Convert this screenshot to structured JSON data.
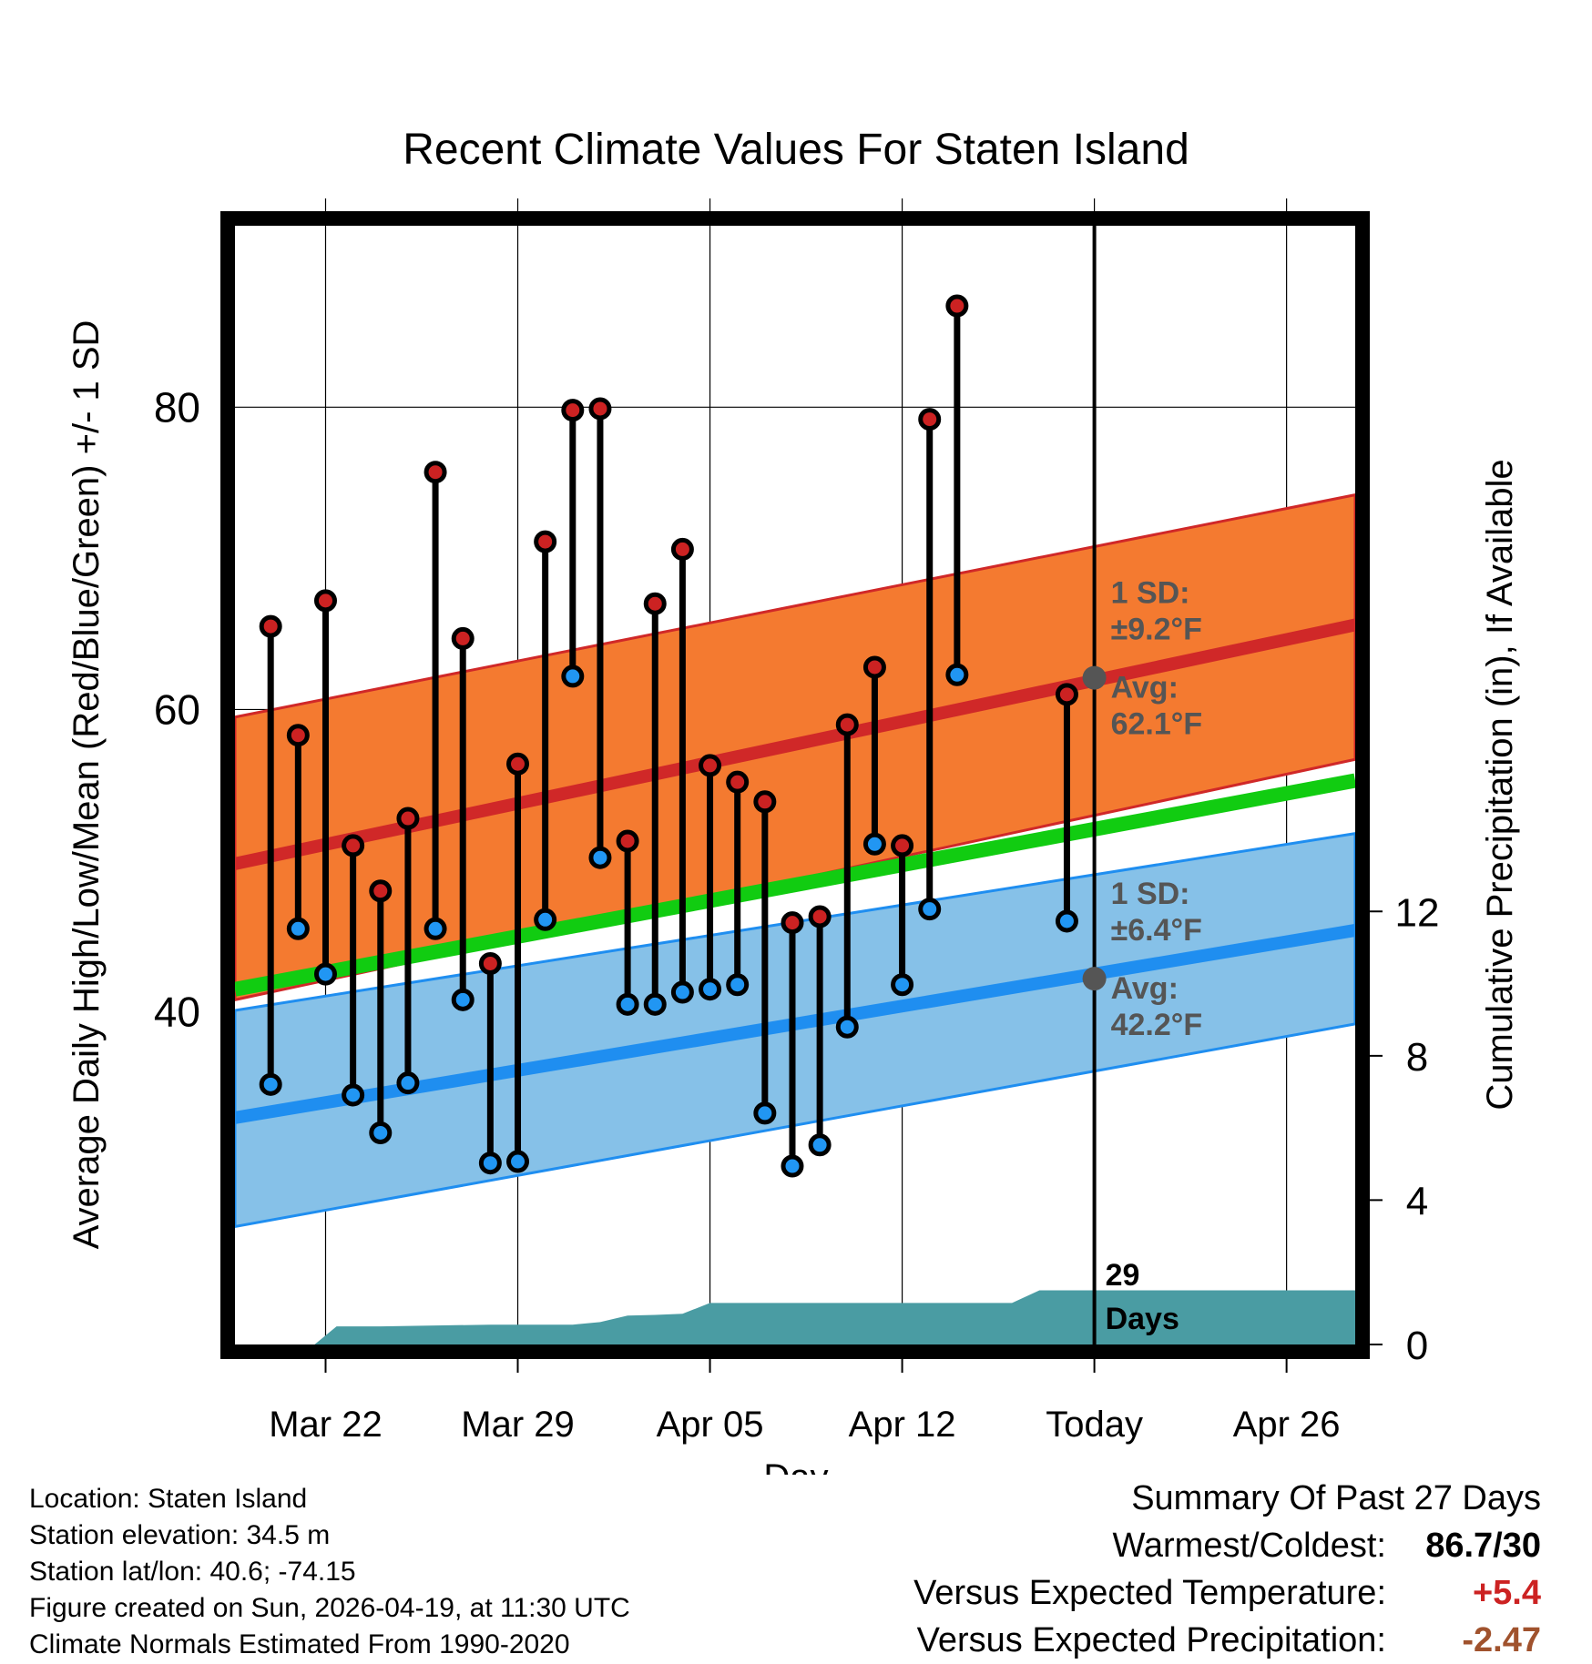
{
  "chart_data": {
    "type": "range-bar",
    "title": "Recent Climate Values For Staten Island",
    "xlabel": "Day",
    "ylabel": "Average Daily High/Low/Mean (Red/Blue/Green) +/- 1 SD",
    "y2label": "Cumulative Precipitation (in), If Available",
    "x_ticks": [
      "Mar 22",
      "Mar 29",
      "Apr 05",
      "Apr 12",
      "Today",
      "Apr 26"
    ],
    "x_tick_days": [
      0,
      7,
      14,
      21,
      28,
      35
    ],
    "xlim": [
      -3.3,
      37.5
    ],
    "ylim": [
      18,
      92
    ],
    "y_ticks": [
      40,
      60,
      80
    ],
    "y_minor_ticks": [
      30,
      50,
      70,
      90
    ],
    "y2lim": [
      0,
      31
    ],
    "y2_ticks": [
      0,
      4,
      8,
      12
    ],
    "today_day": 28,
    "daily": {
      "days": [
        -2,
        -1,
        0,
        1,
        2,
        3,
        4,
        5,
        6,
        7,
        8,
        9,
        10,
        11,
        12,
        13,
        14,
        15,
        16,
        17,
        18,
        19,
        20,
        21,
        22,
        23,
        27
      ],
      "highs": [
        65.5,
        58.3,
        67.2,
        51.0,
        48.0,
        52.8,
        75.7,
        64.7,
        43.2,
        56.4,
        71.1,
        79.8,
        79.9,
        51.3,
        67.0,
        70.6,
        56.3,
        55.2,
        53.9,
        45.9,
        46.3,
        59.0,
        62.8,
        51.0,
        79.2,
        86.7,
        61.0
      ],
      "lows": [
        35.2,
        45.5,
        42.5,
        34.5,
        32.0,
        35.3,
        45.5,
        40.8,
        30.0,
        30.1,
        46.1,
        62.2,
        50.2,
        40.5,
        40.5,
        41.3,
        41.5,
        41.8,
        33.3,
        29.8,
        31.2,
        39.0,
        51.1,
        41.8,
        46.8,
        62.3,
        46.0
      ]
    },
    "normals": {
      "days": [
        -3.3,
        37.5
      ],
      "high_avg": [
        49.8,
        65.6
      ],
      "high_upper": [
        59.5,
        74.2
      ],
      "high_lower": [
        40.8,
        56.7
      ],
      "mean_avg": [
        41.5,
        55.3
      ],
      "low_avg": [
        33.0,
        45.4
      ],
      "low_upper": [
        40.1,
        51.8
      ],
      "low_lower": [
        25.8,
        39.2
      ]
    },
    "precip": {
      "days": [
        -3.3,
        -0.4,
        0.4,
        2.0,
        6.0,
        9.0,
        10.0,
        11.0,
        12.0,
        13.0,
        14.0,
        15.0,
        25.0,
        26.0,
        37.5
      ],
      "values": [
        0,
        0,
        0.5,
        0.5,
        0.55,
        0.55,
        0.62,
        0.8,
        0.82,
        0.85,
        1.15,
        1.15,
        1.15,
        1.5,
        1.5
      ]
    },
    "annotations": {
      "high_sd_label": "1 SD:",
      "high_sd_value": "±9.2°F",
      "high_avg_label": "Avg:",
      "high_avg_value": "62.1°F",
      "high_avg_marker": 62.1,
      "low_sd_label": "1 SD:",
      "low_sd_value": "±6.4°F",
      "low_avg_label": "Avg:",
      "low_avg_value": "42.2°F",
      "low_avg_marker": 42.2,
      "days_count": "29",
      "days_label": "Days"
    },
    "colors": {
      "high_band": "#f47a30",
      "high_line": "#d02828",
      "low_band": "#86c1e8",
      "low_line": "#1f8ef0",
      "mean_line": "#11cc11",
      "precip_fill": "#4a9ca3",
      "high_marker": "#cc2222",
      "low_marker": "#2196f3",
      "annotation": "#555555"
    }
  },
  "info": {
    "location": "Location: Staten Island",
    "elevation": "Station elevation: 34.5 m",
    "latlon": "Station lat/lon: 40.6; -74.15",
    "created": "Figure created on Sun, 2026-04-19, at 11:30 UTC",
    "normals": "Climate Normals Estimated From 1990-2020"
  },
  "summary": {
    "title": "Summary Of Past 27 Days",
    "warmest_label": "Warmest/Coldest:",
    "warmest_value": "86.7/30",
    "temp_label": "Versus Expected Temperature:",
    "temp_value": "+5.4",
    "temp_color": "#cc2222",
    "precip_label": "Versus Expected Precipitation:",
    "precip_value": "-2.47",
    "precip_color": "#a0522d"
  }
}
